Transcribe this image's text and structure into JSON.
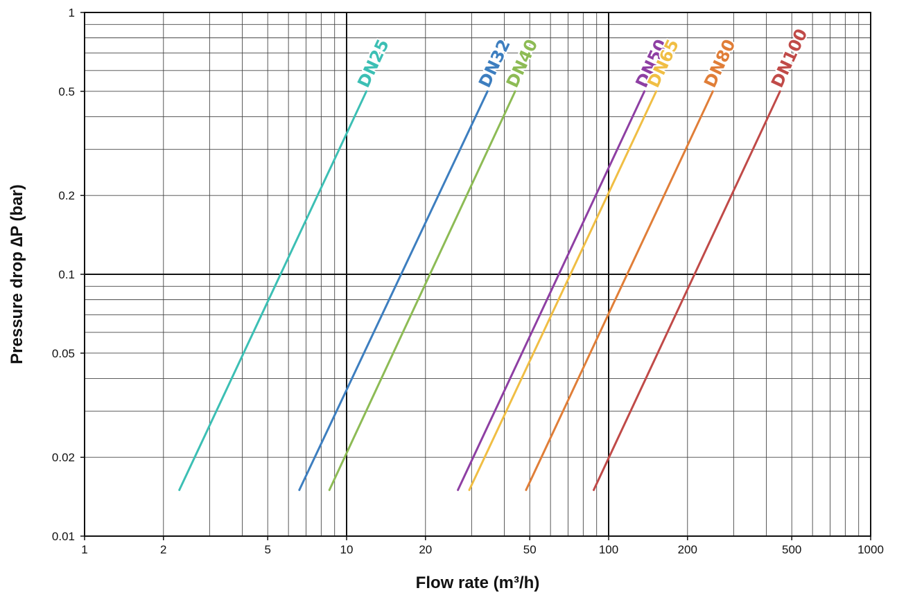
{
  "chart_data": {
    "type": "line",
    "xscale": "log",
    "yscale": "log",
    "xlim": [
      1,
      1000
    ],
    "ylim": [
      0.01,
      1
    ],
    "grid": true,
    "xlabel": "Flow rate (m³/h)",
    "ylabel": "Pressure drop ∆P (bar)",
    "x_ticks": [
      {
        "value": 1,
        "label": "1"
      },
      {
        "value": 2,
        "label": "2"
      },
      {
        "value": 5,
        "label": "5"
      },
      {
        "value": 10,
        "label": "10"
      },
      {
        "value": 20,
        "label": "20"
      },
      {
        "value": 50,
        "label": "50"
      },
      {
        "value": 100,
        "label": "100"
      },
      {
        "value": 200,
        "label": "200"
      },
      {
        "value": 500,
        "label": "500"
      },
      {
        "value": 1000,
        "label": "1000"
      }
    ],
    "y_ticks": [
      {
        "value": 0.01,
        "label": "0.01"
      },
      {
        "value": 0.02,
        "label": "0.02"
      },
      {
        "value": 0.05,
        "label": "0.05"
      },
      {
        "value": 0.1,
        "label": "0.1"
      },
      {
        "value": 0.2,
        "label": "0.2"
      },
      {
        "value": 0.5,
        "label": "0.5"
      },
      {
        "value": 1,
        "label": "1"
      }
    ],
    "series": [
      {
        "name": "DN25",
        "color": "#3cbfb4",
        "x": [
          2.3,
          11.9
        ],
        "y": [
          0.015,
          0.5
        ]
      },
      {
        "name": "DN32",
        "color": "#3d7ebf",
        "x": [
          6.6,
          34.5
        ],
        "y": [
          0.015,
          0.5
        ]
      },
      {
        "name": "DN40",
        "color": "#8dbb55",
        "x": [
          8.6,
          44
        ],
        "y": [
          0.015,
          0.5
        ]
      },
      {
        "name": "DN50",
        "color": "#8e3fa3",
        "x": [
          26.6,
          137
        ],
        "y": [
          0.015,
          0.5
        ]
      },
      {
        "name": "DN65",
        "color": "#f0be44",
        "x": [
          29.4,
          152
        ],
        "y": [
          0.015,
          0.5
        ]
      },
      {
        "name": "DN80",
        "color": "#e07e38",
        "x": [
          48.4,
          250
        ],
        "y": [
          0.015,
          0.5
        ]
      },
      {
        "name": "DN100",
        "color": "#c04a48",
        "x": [
          87.7,
          451
        ],
        "y": [
          0.015,
          0.5
        ]
      }
    ]
  }
}
